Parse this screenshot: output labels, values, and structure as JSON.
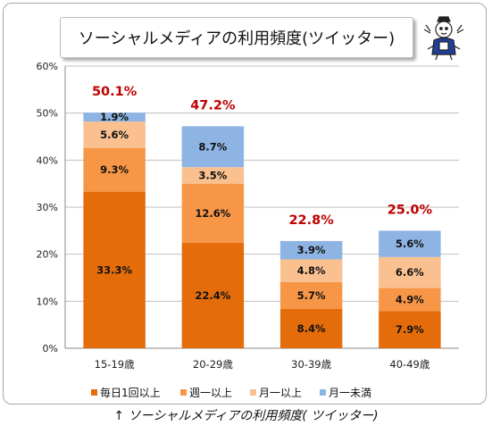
{
  "chart_data": {
    "type": "bar",
    "stacked": true,
    "title": "ソーシャルメディアの利用頻度(ツイッター)",
    "categories": [
      "15-19歳",
      "20-29歳",
      "30-39歳",
      "40-49歳"
    ],
    "series": [
      {
        "name": "毎日1回以上",
        "color": "#e46c0a",
        "values": [
          33.3,
          22.4,
          8.4,
          7.9
        ],
        "labels": [
          "33.3%",
          "22.4%",
          "8.4%",
          "7.9%"
        ]
      },
      {
        "name": "週一以上",
        "color": "#f79646",
        "values": [
          9.3,
          12.6,
          5.7,
          4.9
        ],
        "labels": [
          "9.3%",
          "12.6%",
          "5.7%",
          "4.9%"
        ]
      },
      {
        "name": "月一以上",
        "color": "#fac090",
        "values": [
          5.6,
          3.5,
          4.8,
          6.6
        ],
        "labels": [
          "5.6%",
          "3.5%",
          "4.8%",
          "6.6%"
        ]
      },
      {
        "name": "月一未満",
        "color": "#8eb4e3",
        "values": [
          1.9,
          8.7,
          3.9,
          5.6
        ],
        "labels": [
          "1.9%",
          "8.7%",
          "3.9%",
          "5.6%"
        ]
      }
    ],
    "totals": [
      50.1,
      47.2,
      22.8,
      25.0
    ],
    "total_labels": [
      "50.1%",
      "47.2%",
      "22.8%",
      "25.0%"
    ],
    "total_label_color": "#c00000",
    "yticks": [
      "0%",
      "10%",
      "20%",
      "30%",
      "40%",
      "50%",
      "60%"
    ],
    "ylim": [
      0,
      60
    ],
    "grid": true,
    "legend_position": "bottom"
  },
  "caption": "↑ ソーシャルメディアの利用頻度( ツイッター)"
}
